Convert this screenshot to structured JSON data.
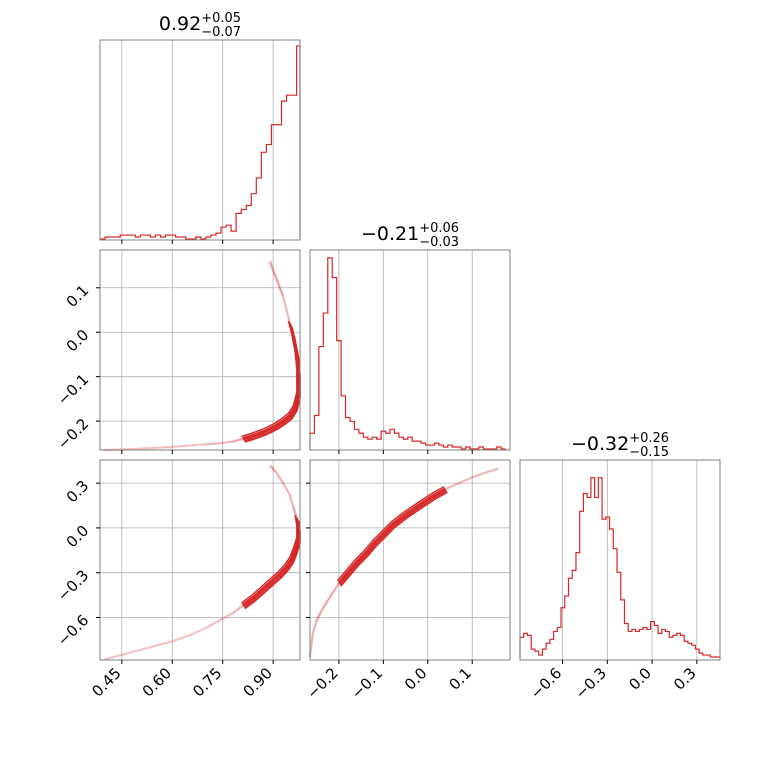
{
  "chart_data": {
    "type": "corner",
    "color": "#d62728",
    "parameters": [
      {
        "title": {
          "median": "0.92",
          "plus": "+0.05",
          "minus": "−0.07"
        },
        "range": [
          0.385,
          0.98
        ],
        "ticks": [
          0.45,
          0.6,
          0.75,
          0.9
        ],
        "tick_labels": [
          "0.45",
          "0.60",
          "0.75",
          "0.90"
        ]
      },
      {
        "title": {
          "median": "−0.21",
          "plus": "+0.06",
          "minus": "−0.03"
        },
        "range": [
          -0.265,
          0.185
        ],
        "ticks": [
          -0.2,
          -0.1,
          0.0,
          0.1
        ],
        "tick_labels": [
          "−0.2",
          "−0.1",
          "0.0",
          "0.1"
        ]
      },
      {
        "title": {
          "median": "−0.32",
          "plus": "+0.26",
          "minus": "−0.15"
        },
        "range": [
          -0.885,
          0.455
        ],
        "ticks": [
          -0.6,
          -0.3,
          0.0,
          0.3
        ],
        "tick_labels": [
          "−0.6",
          "−0.3",
          "0.0",
          "0.3"
        ]
      }
    ],
    "histograms": [
      {
        "parameter": 0,
        "ymax": 1.0,
        "bin_edges": [
          0.385,
          0.4,
          0.415,
          0.43,
          0.445,
          0.46,
          0.475,
          0.49,
          0.505,
          0.52,
          0.535,
          0.55,
          0.565,
          0.58,
          0.595,
          0.61,
          0.625,
          0.64,
          0.655,
          0.67,
          0.685,
          0.7,
          0.715,
          0.73,
          0.745,
          0.76,
          0.775,
          0.79,
          0.805,
          0.82,
          0.835,
          0.85,
          0.865,
          0.88,
          0.895,
          0.91,
          0.925,
          0.94,
          0.955,
          0.97,
          0.98
        ],
        "counts": [
          0.0,
          0.01,
          0.01,
          0.01,
          0.02,
          0.02,
          0.02,
          0.01,
          0.02,
          0.02,
          0.01,
          0.02,
          0.01,
          0.02,
          0.02,
          0.01,
          0.01,
          0.0,
          0.0,
          0.01,
          0.0,
          0.01,
          0.02,
          0.03,
          0.06,
          0.07,
          0.04,
          0.13,
          0.15,
          0.17,
          0.23,
          0.31,
          0.44,
          0.48,
          0.58,
          0.58,
          0.7,
          0.73,
          0.73,
          0.98
        ]
      },
      {
        "parameter": 1,
        "ymax": 1.0,
        "bin_edges": [
          -0.265,
          -0.255,
          -0.245,
          -0.235,
          -0.225,
          -0.215,
          -0.205,
          -0.195,
          -0.185,
          -0.175,
          -0.165,
          -0.155,
          -0.145,
          -0.135,
          -0.125,
          -0.115,
          -0.105,
          -0.095,
          -0.085,
          -0.075,
          -0.065,
          -0.055,
          -0.045,
          -0.035,
          -0.025,
          -0.015,
          -0.005,
          0.005,
          0.015,
          0.025,
          0.035,
          0.045,
          0.055,
          0.065,
          0.075,
          0.085,
          0.095,
          0.105,
          0.115,
          0.125,
          0.135,
          0.145,
          0.155,
          0.165,
          0.175
        ],
        "counts": [
          0.08,
          0.17,
          0.52,
          0.69,
          0.97,
          0.87,
          0.55,
          0.27,
          0.16,
          0.14,
          0.1,
          0.08,
          0.06,
          0.05,
          0.06,
          0.05,
          0.09,
          0.08,
          0.1,
          0.08,
          0.06,
          0.05,
          0.06,
          0.04,
          0.04,
          0.03,
          0.02,
          0.02,
          0.03,
          0.02,
          0.01,
          0.02,
          0.01,
          0.01,
          0.0,
          0.01,
          0.0,
          0.0,
          0.01,
          0.0,
          0.0,
          0.0,
          0.01,
          0.0
        ]
      },
      {
        "parameter": 2,
        "ymax": 1.0,
        "bin_edges": [
          -0.885,
          -0.86,
          -0.835,
          -0.81,
          -0.785,
          -0.76,
          -0.735,
          -0.71,
          -0.685,
          -0.66,
          -0.635,
          -0.61,
          -0.585,
          -0.56,
          -0.535,
          -0.51,
          -0.485,
          -0.46,
          -0.435,
          -0.41,
          -0.385,
          -0.36,
          -0.335,
          -0.31,
          -0.285,
          -0.26,
          -0.235,
          -0.21,
          -0.185,
          -0.16,
          -0.135,
          -0.11,
          -0.085,
          -0.06,
          -0.035,
          -0.01,
          0.015,
          0.04,
          0.065,
          0.09,
          0.115,
          0.14,
          0.165,
          0.19,
          0.215,
          0.24,
          0.265,
          0.29,
          0.315,
          0.34,
          0.365,
          0.39,
          0.415,
          0.455
        ],
        "counts": [
          0.11,
          0.13,
          0.12,
          0.05,
          0.04,
          0.02,
          0.05,
          0.08,
          0.1,
          0.14,
          0.16,
          0.26,
          0.32,
          0.41,
          0.45,
          0.54,
          0.75,
          0.84,
          0.82,
          0.92,
          0.82,
          0.92,
          0.71,
          0.72,
          0.66,
          0.56,
          0.44,
          0.3,
          0.18,
          0.14,
          0.15,
          0.14,
          0.15,
          0.16,
          0.15,
          0.19,
          0.17,
          0.13,
          0.15,
          0.14,
          0.11,
          0.12,
          0.13,
          0.12,
          0.09,
          0.08,
          0.07,
          0.05,
          0.03,
          0.02,
          0.02,
          0.01,
          0.01
        ]
      }
    ],
    "scatter_2d": [
      {
        "x_param": 0,
        "y_param": 1,
        "curve_x": [
          0.4,
          0.45,
          0.5,
          0.55,
          0.6,
          0.65,
          0.7,
          0.74,
          0.78,
          0.81,
          0.84,
          0.87,
          0.89,
          0.91,
          0.93,
          0.95,
          0.965,
          0.975,
          0.975,
          0.97,
          0.96,
          0.95,
          0.94,
          0.93,
          0.92,
          0.91,
          0.9,
          0.89
        ],
        "curve_y": [
          -0.265,
          -0.264,
          -0.262,
          -0.26,
          -0.258,
          -0.255,
          -0.252,
          -0.25,
          -0.246,
          -0.24,
          -0.233,
          -0.225,
          -0.218,
          -0.21,
          -0.2,
          -0.188,
          -0.17,
          -0.14,
          -0.09,
          -0.05,
          -0.01,
          0.02,
          0.05,
          0.08,
          0.1,
          0.12,
          0.14,
          0.16
        ]
      },
      {
        "x_param": 0,
        "y_param": 2,
        "curve_x": [
          0.4,
          0.45,
          0.5,
          0.55,
          0.6,
          0.65,
          0.7,
          0.74,
          0.78,
          0.81,
          0.84,
          0.86,
          0.88,
          0.9,
          0.92,
          0.94,
          0.955,
          0.965,
          0.975,
          0.975,
          0.97,
          0.96,
          0.95,
          0.93,
          0.91,
          0.89
        ],
        "curve_y": [
          -0.88,
          -0.85,
          -0.82,
          -0.79,
          -0.76,
          -0.72,
          -0.67,
          -0.62,
          -0.57,
          -0.52,
          -0.47,
          -0.43,
          -0.39,
          -0.35,
          -0.31,
          -0.26,
          -0.21,
          -0.15,
          -0.08,
          0.0,
          0.07,
          0.14,
          0.22,
          0.3,
          0.37,
          0.42
        ]
      },
      {
        "x_param": 1,
        "y_param": 2,
        "curve_x": [
          -0.265,
          -0.262,
          -0.258,
          -0.25,
          -0.24,
          -0.228,
          -0.215,
          -0.2,
          -0.18,
          -0.16,
          -0.14,
          -0.12,
          -0.1,
          -0.08,
          -0.05,
          -0.02,
          0.01,
          0.04,
          0.07,
          0.1,
          0.13,
          0.16
        ],
        "curve_y": [
          -0.86,
          -0.78,
          -0.7,
          -0.62,
          -0.56,
          -0.5,
          -0.44,
          -0.37,
          -0.3,
          -0.23,
          -0.17,
          -0.1,
          -0.04,
          0.02,
          0.09,
          0.15,
          0.21,
          0.26,
          0.3,
          0.34,
          0.37,
          0.4
        ]
      }
    ]
  }
}
